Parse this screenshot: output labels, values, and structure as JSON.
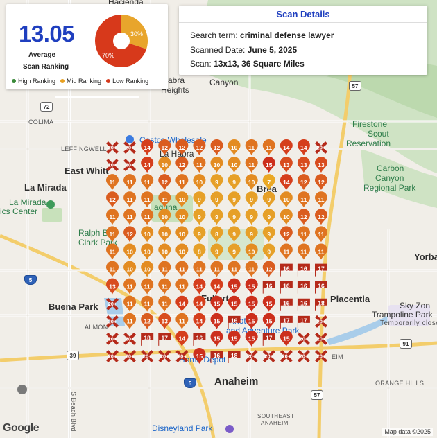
{
  "summary": {
    "average_value": "13.05",
    "average_label_line1": "Average",
    "average_label_line2": "Scan Ranking",
    "donut": {
      "mid_percent": 30,
      "low_percent": 70,
      "mid_label": "30%",
      "low_label": "70%"
    },
    "legend": [
      {
        "label": "High Ranking",
        "color": "#3a8a3a"
      },
      {
        "label": "Mid Ranking",
        "color": "#e8a020"
      },
      {
        "label": "Low Ranking",
        "color": "#d4381c"
      }
    ]
  },
  "scan_details": {
    "title": "Scan Details",
    "search_term_label": "Search term:",
    "search_term_value": "criminal defense lawyer",
    "date_label": "Scanned Date:",
    "date_value": "June 5, 2025",
    "scan_label": "Scan:",
    "scan_value": "13x13, 36 Square Miles"
  },
  "map": {
    "attribution": "Map data ©2025",
    "google_logo": "Google",
    "places": [
      {
        "id": "hacienda",
        "text": "Hacienda",
        "cls": "city"
      },
      {
        "id": "canyon",
        "text": "Canyon",
        "cls": "city"
      },
      {
        "id": "colima",
        "text": "COLIMA",
        "cls": "small"
      },
      {
        "id": "leffingwell",
        "text": "LEFFINGWELL",
        "cls": "small"
      },
      {
        "id": "east-whittier",
        "text": "East Whitt",
        "cls": "big"
      },
      {
        "id": "la-mirada",
        "text": "La Mirada",
        "cls": "big"
      },
      {
        "id": "la-mirada-park",
        "text": "La Mirada",
        "cls": "park"
      },
      {
        "id": "ics-center",
        "text": "ics Center",
        "cls": "park"
      },
      {
        "id": "ralph-b",
        "text": "Ralph B",
        "cls": "park"
      },
      {
        "id": "clark-park",
        "text": "Clark Park",
        "cls": "park"
      },
      {
        "id": "costco",
        "text": "Costco Wholesale",
        "cls": "poi"
      },
      {
        "id": "la-habra",
        "text": "La Habra",
        "cls": "city"
      },
      {
        "id": "abra",
        "text": "abra",
        "cls": "city"
      },
      {
        "id": "heights",
        "text": "Heights",
        "cls": "city"
      },
      {
        "id": "brea",
        "text": "Brea",
        "cls": "big"
      },
      {
        "id": "laguna",
        "text": "aguna",
        "cls": "park"
      },
      {
        "id": "fullerton",
        "text": "Fullert",
        "cls": "big"
      },
      {
        "id": "buena-park",
        "text": "Buena Park",
        "cls": "big"
      },
      {
        "id": "almond",
        "text": "ALMON",
        "cls": "small"
      },
      {
        "id": "placentia",
        "text": "Placentia",
        "cls": "big"
      },
      {
        "id": "sky-zone",
        "text": "Sky Zon",
        "cls": "city"
      },
      {
        "id": "trampoline",
        "text": "Trampoline Park",
        "cls": "city"
      },
      {
        "id": "temp-closed",
        "text": "Temporarily close",
        "cls": "hood"
      },
      {
        "id": "firestone",
        "text": "Firestone",
        "cls": "park"
      },
      {
        "id": "scout",
        "text": "Scout",
        "cls": "park"
      },
      {
        "id": "reservation",
        "text": "Reservation",
        "cls": "park"
      },
      {
        "id": "carbon",
        "text": "Carbon",
        "cls": "park"
      },
      {
        "id": "canyon-park",
        "text": "Canyon",
        "cls": "park"
      },
      {
        "id": "regional-park",
        "text": "Regional Park",
        "cls": "park"
      },
      {
        "id": "yorba",
        "text": "Yorba",
        "cls": "big"
      },
      {
        "id": "home-depot",
        "text": "Home Depot",
        "cls": "poi"
      },
      {
        "id": "knotts",
        "text": "Knott's",
        "cls": "poi"
      },
      {
        "id": "adventure-park",
        "text": "and Adventure Park",
        "cls": "poi"
      },
      {
        "id": "anaheim",
        "text": "Anaheim",
        "cls": "big"
      },
      {
        "id": "orange-hills",
        "text": "ORANGE HILLS",
        "cls": "small"
      },
      {
        "id": "southeast",
        "text": "SOUTHEAST",
        "cls": "hood"
      },
      {
        "id": "anaheim-se",
        "text": "ANAHEIM",
        "cls": "hood"
      },
      {
        "id": "disneyland",
        "text": "Disneyland Park",
        "cls": "poi"
      },
      {
        "id": "beach-blvd",
        "text": "S Beach Blvd",
        "cls": "small"
      },
      {
        "id": "ball-rd",
        "text": "EIM",
        "cls": "small"
      }
    ],
    "shields": [
      {
        "id": "r72",
        "text": "72",
        "cls": ""
      },
      {
        "id": "r57",
        "text": "57",
        "cls": ""
      },
      {
        "id": "r5",
        "text": "5",
        "cls": "fwy"
      },
      {
        "id": "r39",
        "text": "39",
        "cls": ""
      },
      {
        "id": "r91",
        "text": "91",
        "cls": ""
      },
      {
        "id": "r5b",
        "text": "5",
        "cls": "fwy"
      },
      {
        "id": "r57b",
        "text": "57",
        "cls": ""
      }
    ]
  },
  "grid": {
    "rows": 13,
    "cols": 13,
    "ranks": [
      [
        "20+",
        "20+",
        "14",
        "12",
        "12",
        "12",
        "12",
        "10",
        "11",
        "11",
        "14",
        "14",
        "20+"
      ],
      [
        "20+",
        "20+",
        "14",
        "10",
        "12",
        "11",
        "10",
        "10",
        "11",
        "15",
        "13",
        "13",
        "13"
      ],
      [
        "11",
        "11",
        "11",
        "12",
        "11",
        "10",
        "9",
        "9",
        "10",
        "7",
        "14",
        "12",
        "12"
      ],
      [
        "12",
        "11",
        "11",
        "11",
        "10",
        "9",
        "9",
        "9",
        "9",
        "9",
        "10",
        "11",
        "11"
      ],
      [
        "11",
        "11",
        "11",
        "10",
        "10",
        "9",
        "9",
        "9",
        "9",
        "9",
        "10",
        "12",
        "12"
      ],
      [
        "11",
        "12",
        "10",
        "10",
        "10",
        "9",
        "8",
        "9",
        "9",
        "9",
        "12",
        "11",
        "11"
      ],
      [
        "11",
        "10",
        "10",
        "10",
        "10",
        "8",
        "9",
        "9",
        "10",
        "9",
        "11",
        "11",
        "11"
      ],
      [
        "11",
        "10",
        "10",
        "11",
        "11",
        "11",
        "11",
        "11",
        "11",
        "12",
        "16",
        "16",
        "17"
      ],
      [
        "13",
        "11",
        "11",
        "11",
        "11",
        "14",
        "14",
        "15",
        "15",
        "16",
        "16",
        "16",
        "16"
      ],
      [
        "20+",
        "11",
        "11",
        "11",
        "14",
        "14",
        "15",
        "15",
        "15",
        "15",
        "16",
        "16",
        "18"
      ],
      [
        "20+",
        "11",
        "12",
        "13",
        "11",
        "14",
        "15",
        "16",
        "15",
        "15",
        "17",
        "17",
        "20+"
      ],
      [
        "20+",
        "20+",
        "18",
        "17",
        "14",
        "16",
        "15",
        "15",
        "15",
        "17",
        "15",
        "20+",
        "20+"
      ],
      [
        "20+",
        "20+",
        "20+",
        "20+",
        "20+",
        "15",
        "16",
        "18",
        "20+",
        "20+",
        "20+",
        "20+",
        "20+"
      ]
    ]
  }
}
